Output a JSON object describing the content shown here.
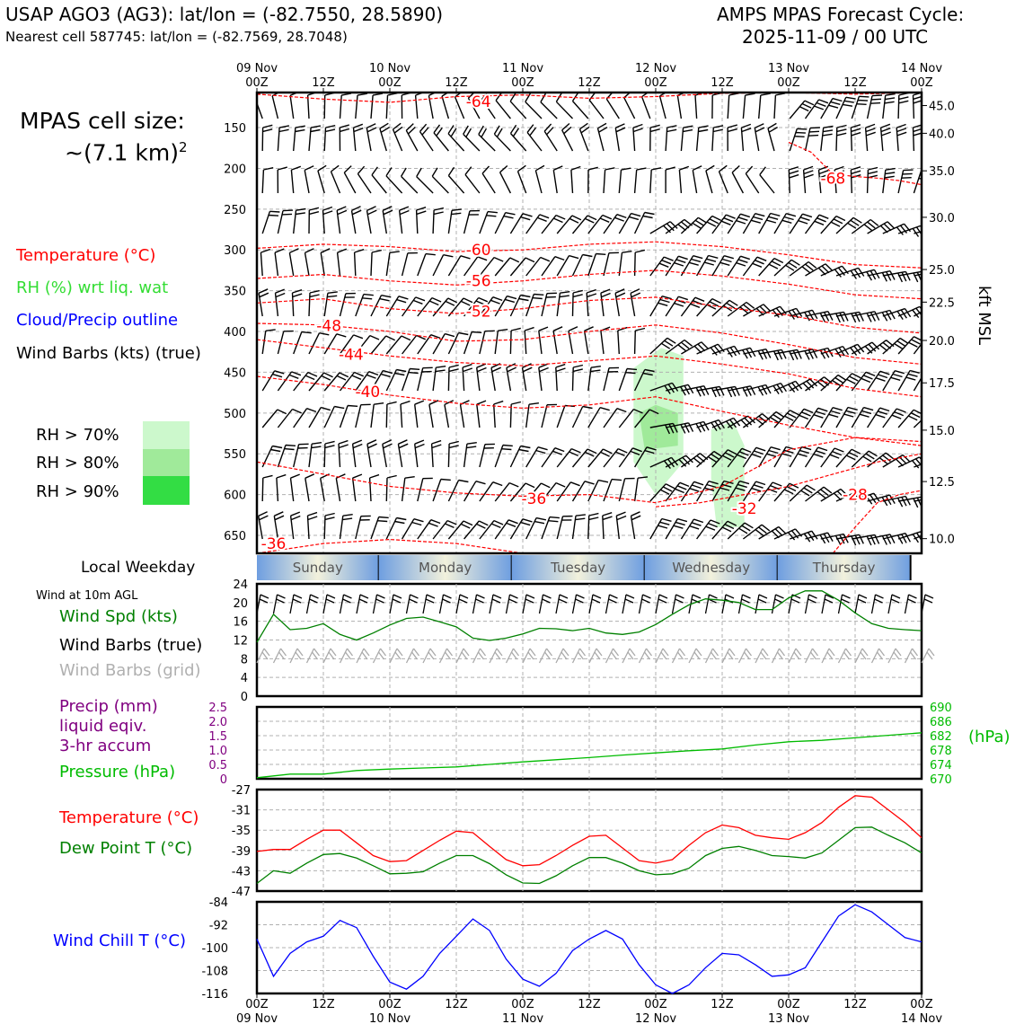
{
  "header": {
    "title": "USAP AGO3 (AG3): lat/lon = (-82.7550, 28.5890)",
    "nearest_cell": "Nearest cell 587745: lat/lon = (-82.7569, 28.7048)",
    "cycle_label": "AMPS MPAS Forecast Cycle:",
    "cycle_date": "2025-11-09 / 00 UTC"
  },
  "cell_size": {
    "label": "MPAS cell size:",
    "value": "~(7.1 km)",
    "exponent": "2"
  },
  "legend_top": {
    "temperature": "Temperature (°C)",
    "rh": "RH (%) wrt liq. wat",
    "cloud": "Cloud/Precip outline",
    "wind_barbs": "Wind Barbs (kts) (true)",
    "rh_levels": [
      "RH > 70%",
      "RH > 80%",
      "RH > 90%"
    ]
  },
  "legend_bottom": {
    "weekday": "Local Weekday",
    "wind10": "Wind at 10m AGL",
    "wind_spd": "Wind Spd (kts)",
    "barbs_true": "Wind Barbs (true)",
    "barbs_grid": "Wind Barbs (grid)",
    "precip1": "Precip (mm)",
    "precip2": "liquid eqiv.",
    "precip3": "3-hr accum",
    "pressure": "Pressure (hPa)",
    "temp": "Temperature (°C)",
    "dewpt": "Dew Point T (°C)",
    "windchill": "Wind Chill T (°C)"
  },
  "colors": {
    "temperature": "#ff0000",
    "rh": "#33dd33",
    "cloud": "#0000ff",
    "green": "#008000",
    "purple": "#800080",
    "pressure": "#00bb00",
    "grid": "#b0b0b0",
    "rh70": "#ccf8cc",
    "rh80": "#a0ea9a",
    "rh90": "#33dd44"
  },
  "chart_data": {
    "type": "line",
    "time_axis": {
      "hours": [
        0,
        12,
        24,
        36,
        48,
        60,
        72,
        84,
        96,
        108,
        120
      ],
      "top_labels": [
        "09 Nov\n00Z",
        "12Z",
        "10 Nov\n00Z",
        "12Z",
        "11 Nov\n00Z",
        "12Z",
        "12 Nov\n00Z",
        "12Z",
        "13 Nov\n00Z",
        "12Z",
        "14 Nov\n00Z"
      ],
      "bottom_times": [
        "00Z",
        "12Z",
        "00Z",
        "12Z",
        "00Z",
        "12Z",
        "00Z",
        "12Z",
        "00Z",
        "12Z",
        "00Z"
      ],
      "bottom_dates": [
        "09 Nov",
        "",
        "10 Nov",
        "",
        "11 Nov",
        "",
        "12 Nov",
        "",
        "13 Nov",
        "",
        "14 Nov"
      ]
    },
    "cross_section": {
      "ylabel_right": "kft MSL",
      "pressure_ticks": [
        150,
        200,
        250,
        300,
        350,
        400,
        450,
        500,
        550,
        600,
        650
      ],
      "kft_ticks": [
        "45.0",
        "40.0",
        "35.0",
        "30.0",
        "25.0",
        "22.5",
        "20.0",
        "17.5",
        "15.0",
        "12.5",
        "10.0"
      ],
      "kft_pressures": [
        123,
        157,
        203,
        260,
        324,
        364,
        411,
        463,
        521,
        584,
        654
      ],
      "ylim": [
        107,
        672
      ],
      "temperature_contours": [
        {
          "level": "-64",
          "h": [
            0,
            12,
            24,
            36,
            48,
            60,
            72,
            84,
            96,
            108,
            120
          ],
          "p": [
            109,
            115,
            119,
            112,
            110,
            114,
            112,
            108,
            107,
            109,
            107
          ],
          "label_at": [
            40,
            118
          ]
        },
        {
          "level": "-68",
          "h": [
            96,
            100,
            104,
            108,
            112,
            116,
            120
          ],
          "p": [
            168,
            180,
            207,
            210,
            212,
            215,
            220
          ],
          "label_at": [
            104,
            212
          ]
        },
        {
          "level": "-60",
          "h": [
            0,
            12,
            24,
            36,
            48,
            60,
            72,
            84,
            96,
            108,
            120
          ],
          "p": [
            298,
            293,
            296,
            302,
            300,
            293,
            290,
            296,
            306,
            318,
            322
          ],
          "label_at": [
            40,
            300
          ]
        },
        {
          "level": "-56",
          "h": [
            0,
            12,
            24,
            36,
            48,
            60,
            72,
            84,
            96,
            108,
            120
          ],
          "p": [
            335,
            330,
            338,
            343,
            338,
            330,
            325,
            332,
            342,
            355,
            360
          ],
          "label_at": [
            40,
            338
          ]
        },
        {
          "level": "-52",
          "h": [
            0,
            12,
            24,
            36,
            48,
            60,
            72,
            84,
            96,
            108,
            120
          ],
          "p": [
            365,
            360,
            372,
            378,
            372,
            362,
            358,
            370,
            380,
            395,
            402
          ],
          "label_at": [
            40,
            375
          ]
        },
        {
          "level": "-48",
          "h": [
            0,
            12,
            24,
            36,
            48,
            60,
            72,
            84,
            96,
            108,
            120
          ],
          "p": [
            390,
            392,
            400,
            412,
            410,
            400,
            392,
            402,
            416,
            432,
            440
          ],
          "label_at": [
            13,
            393
          ]
        },
        {
          "level": "-44",
          "h": [
            0,
            12,
            24,
            36,
            48,
            60,
            72,
            84,
            96,
            108,
            120
          ],
          "p": [
            410,
            420,
            430,
            438,
            442,
            436,
            430,
            440,
            452,
            470,
            480
          ],
          "label_at": [
            17,
            428
          ]
        },
        {
          "level": "-40",
          "h": [
            0,
            12,
            24,
            36,
            48,
            60,
            72,
            84,
            96,
            108,
            120
          ],
          "p": [
            455,
            465,
            478,
            488,
            494,
            490,
            480,
            498,
            515,
            530,
            540
          ],
          "label_at": [
            20,
            474
          ]
        },
        {
          "level": "-36",
          "h": [
            0,
            12,
            24,
            36,
            48,
            60,
            72,
            84,
            96,
            108,
            120
          ],
          "p": [
            560,
            575,
            590,
            598,
            602,
            600,
            610,
            590,
            545,
            530,
            535
          ],
          "label_at": [
            50,
            605
          ]
        },
        {
          "level": "-32",
          "h": [
            72,
            80,
            88,
            96,
            104,
            112,
            120
          ],
          "p": [
            615,
            610,
            600,
            590,
            575,
            560,
            550
          ],
          "label_at": [
            88,
            617
          ]
        },
        {
          "level": "-28",
          "h": [
            104,
            108,
            112,
            116,
            120
          ],
          "p": [
            672,
            640,
            610,
            600,
            595
          ],
          "label_at": [
            108,
            600
          ]
        },
        {
          "level": "-36",
          "h": [
            0,
            12,
            24,
            36,
            48
          ],
          "p": [
            672,
            660,
            655,
            660,
            672
          ],
          "label_at": [
            3,
            660
          ]
        }
      ],
      "rh_areas": [
        {
          "level": "rh70",
          "h": [
            68,
            73,
            77,
            77,
            72,
            68
          ],
          "p": [
            445,
            420,
            430,
            560,
            600,
            560
          ]
        },
        {
          "level": "rh80",
          "h": [
            69,
            72,
            76,
            76,
            70
          ],
          "p": [
            500,
            490,
            500,
            540,
            545
          ]
        },
        {
          "level": "rh70",
          "h": [
            82,
            86,
            88,
            88,
            83,
            82
          ],
          "p": [
            520,
            510,
            540,
            640,
            640,
            580
          ]
        }
      ]
    },
    "weekdays": [
      {
        "name": "Sunday",
        "start": 0,
        "end": 22
      },
      {
        "name": "Monday",
        "start": 22,
        "end": 46
      },
      {
        "name": "Tuesday",
        "start": 46,
        "end": 70
      },
      {
        "name": "Wednesday",
        "start": 70,
        "end": 94
      },
      {
        "name": "Thursday",
        "start": 94,
        "end": 118
      }
    ],
    "wind_speed": {
      "ylim": [
        0,
        24
      ],
      "yticks": [
        0,
        4,
        8,
        12,
        16,
        20,
        24
      ],
      "hours": [
        0,
        3,
        6,
        9,
        12,
        15,
        18,
        21,
        24,
        27,
        30,
        33,
        36,
        39,
        42,
        45,
        48,
        51,
        54,
        57,
        60,
        63,
        66,
        69,
        72,
        75,
        78,
        81,
        84,
        87,
        90,
        93,
        96,
        99,
        102,
        105,
        108,
        111,
        114,
        117,
        120
      ],
      "values": [
        11.5,
        17.5,
        14.2,
        14.5,
        15.5,
        13.2,
        12.0,
        13.5,
        15.2,
        16.6,
        16.9,
        15.9,
        14.8,
        12.4,
        11.9,
        12.4,
        13.3,
        14.5,
        14.4,
        14.0,
        14.5,
        13.5,
        13.2,
        13.7,
        15.3,
        17.5,
        19.5,
        20.8,
        20.5,
        20.0,
        18.5,
        18.5,
        21.0,
        22.5,
        22.5,
        20.5,
        17.8,
        15.5,
        14.5,
        14.2,
        14.0
      ]
    },
    "precip_pressure": {
      "precip_ylim": [
        0,
        2.5
      ],
      "precip_ticks": [
        "0",
        "0.5",
        "1.0",
        "1.5",
        "2.0",
        "2.5"
      ],
      "pressure_ylim": [
        670,
        690
      ],
      "pressure_ticks": [
        "670",
        "674",
        "678",
        "682",
        "686",
        "690"
      ],
      "pressure_unit": "(hPa)",
      "hours": [
        0,
        6,
        12,
        18,
        24,
        30,
        36,
        42,
        48,
        54,
        60,
        66,
        72,
        78,
        84,
        90,
        96,
        102,
        108,
        114,
        120
      ],
      "pressure": [
        670.3,
        671.3,
        671.3,
        672.3,
        672.7,
        673.0,
        673.3,
        674.0,
        674.7,
        675.3,
        675.9,
        676.6,
        677.2,
        677.8,
        678.3,
        679.4,
        680.3,
        680.7,
        681.4,
        682.1,
        682.8
      ]
    },
    "temp_dew": {
      "ylim": [
        -47,
        -27
      ],
      "yticks": [
        -47,
        -43,
        -39,
        -35,
        -31,
        -27
      ],
      "hours": [
        0,
        3,
        6,
        9,
        12,
        15,
        18,
        21,
        24,
        27,
        30,
        33,
        36,
        39,
        42,
        45,
        48,
        51,
        54,
        57,
        60,
        63,
        66,
        69,
        72,
        75,
        78,
        81,
        84,
        87,
        90,
        93,
        96,
        99,
        102,
        105,
        108,
        111,
        114,
        117,
        120
      ],
      "temperature": [
        -39.2,
        -38.8,
        -38.8,
        -36.8,
        -35.0,
        -35.0,
        -37.5,
        -40.0,
        -41.2,
        -41.0,
        -39.0,
        -37.0,
        -35.2,
        -35.5,
        -38.2,
        -40.8,
        -42.0,
        -41.8,
        -40.0,
        -38.0,
        -36.2,
        -36.0,
        -38.5,
        -41.0,
        -41.5,
        -40.8,
        -38.0,
        -35.5,
        -34.0,
        -34.5,
        -36.0,
        -36.5,
        -36.8,
        -35.5,
        -33.5,
        -30.5,
        -28.2,
        -28.5,
        -31.0,
        -33.5,
        -36.5
      ],
      "dewpoint": [
        -45.5,
        -43.0,
        -43.5,
        -41.5,
        -39.8,
        -39.6,
        -40.5,
        -42.0,
        -43.6,
        -43.5,
        -43.2,
        -41.5,
        -40.0,
        -40.0,
        -41.6,
        -43.8,
        -45.4,
        -45.5,
        -44.0,
        -42.0,
        -40.4,
        -40.4,
        -41.5,
        -43.0,
        -43.8,
        -43.6,
        -42.5,
        -40.0,
        -38.6,
        -38.2,
        -39.0,
        -40.0,
        -40.2,
        -40.5,
        -39.5,
        -37.0,
        -34.5,
        -34.4,
        -36.0,
        -37.5,
        -39.5
      ]
    },
    "wind_chill": {
      "ylim": [
        -116,
        -84
      ],
      "yticks": [
        -116,
        -108,
        -100,
        -92,
        -84
      ],
      "hours": [
        0,
        3,
        6,
        9,
        12,
        15,
        18,
        21,
        24,
        27,
        30,
        33,
        36,
        39,
        42,
        45,
        48,
        51,
        54,
        57,
        60,
        63,
        66,
        69,
        72,
        75,
        78,
        81,
        84,
        87,
        90,
        93,
        96,
        99,
        102,
        105,
        108,
        111,
        114,
        117,
        120
      ],
      "values": [
        -97,
        -110,
        -102,
        -98,
        -96,
        -90.5,
        -93,
        -103,
        -112,
        -114.5,
        -110,
        -102,
        -96,
        -90,
        -94,
        -104,
        -111,
        -113.5,
        -109,
        -101,
        -97,
        -94,
        -97,
        -106,
        -113,
        -116,
        -113,
        -107,
        -102,
        -102.5,
        -106,
        -110,
        -109.5,
        -107,
        -98,
        -89,
        -85,
        -87.5,
        -92,
        -96.5,
        -98
      ]
    }
  }
}
